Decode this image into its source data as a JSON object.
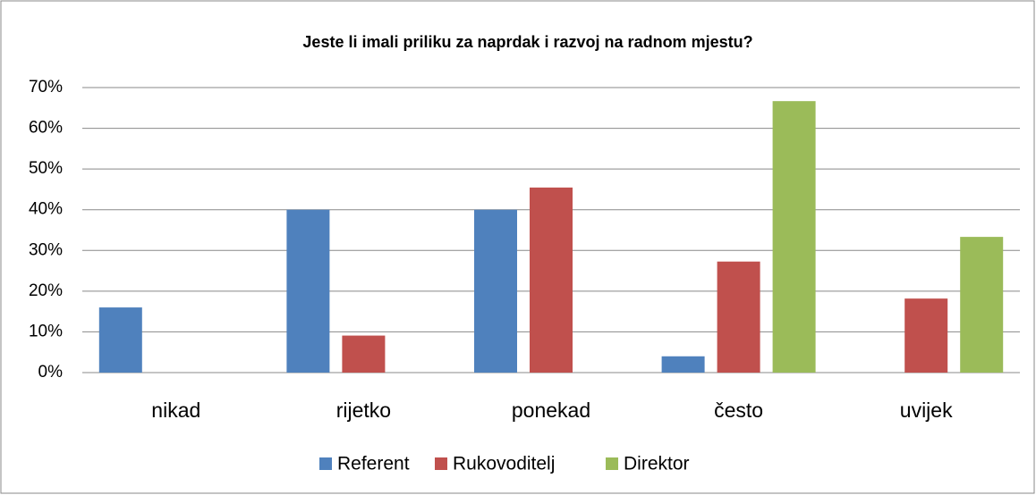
{
  "chart_data": {
    "type": "bar",
    "title": "Jeste li imali priliku za naprdak i razvoj na radnom mjestu?",
    "categories": [
      "nikad",
      "rijetko",
      "ponekad",
      "često",
      "uvijek"
    ],
    "series": [
      {
        "name": "Referent",
        "color": "#4f81bd",
        "values": [
          16,
          40,
          40,
          4,
          0
        ]
      },
      {
        "name": "Rukovoditelj",
        "color": "#c0504d",
        "values": [
          0,
          9.09,
          45.45,
          27.27,
          18.18
        ]
      },
      {
        "name": "Direktor",
        "color": "#9bbb59",
        "values": [
          0,
          0,
          0,
          66.67,
          33.33
        ]
      }
    ],
    "ylim": [
      0,
      70
    ],
    "yticks": [
      {
        "value": 0,
        "label": "0%"
      },
      {
        "value": 10,
        "label": "10%"
      },
      {
        "value": 20,
        "label": "20%"
      },
      {
        "value": 30,
        "label": "30%"
      },
      {
        "value": 40,
        "label": "40%"
      },
      {
        "value": 50,
        "label": "50%"
      },
      {
        "value": 60,
        "label": "60%"
      },
      {
        "value": 70,
        "label": "70%"
      }
    ],
    "grid": true,
    "legend": "bottom"
  }
}
